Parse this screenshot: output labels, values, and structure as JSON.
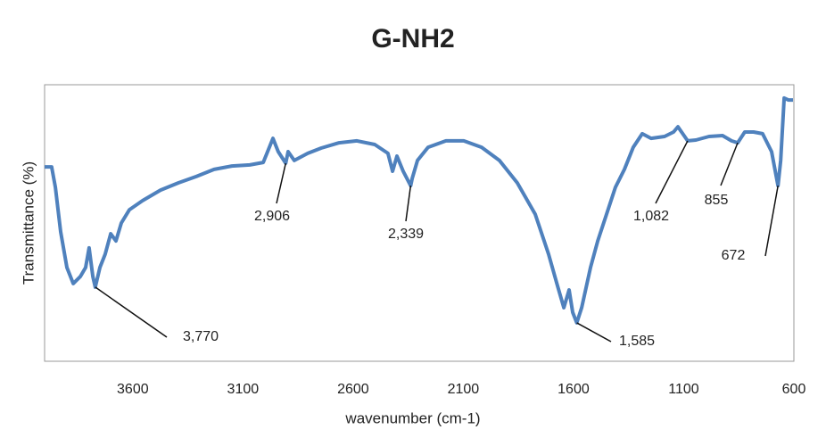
{
  "chart_data": {
    "type": "line",
    "title": "G-NH2",
    "x_label": "wavenumber (cm-1)",
    "y_label": "Transmittance (%)",
    "x": [
      4000,
      3968,
      3951,
      3927,
      3899,
      3870,
      3838,
      3814,
      3798,
      3781,
      3770,
      3749,
      3725,
      3700,
      3676,
      3652,
      3615,
      3555,
      3474,
      3393,
      3312,
      3231,
      3150,
      3069,
      3008,
      2988,
      2964,
      2940,
      2906,
      2895,
      2867,
      2806,
      2745,
      2664,
      2583,
      2502,
      2442,
      2421,
      2401,
      2373,
      2339,
      2332,
      2308,
      2260,
      2179,
      2098,
      2017,
      1936,
      1855,
      1774,
      1713,
      1673,
      1644,
      1620,
      1604,
      1585,
      1563,
      1523,
      1490,
      1450,
      1410,
      1369,
      1329,
      1288,
      1248,
      1187,
      1146,
      1126,
      1082,
      1045,
      985,
      924,
      883,
      855,
      823,
      783,
      742,
      701,
      672,
      660,
      644,
      625,
      604
    ],
    "values": [
      70.3,
      70.3,
      62.9,
      46.8,
      33.9,
      28.1,
      30.6,
      33.9,
      41.0,
      30.6,
      26.8,
      33.9,
      38.7,
      46.1,
      43.5,
      50.0,
      54.8,
      58.1,
      61.9,
      64.5,
      66.8,
      69.4,
      70.6,
      71.0,
      71.9,
      75.8,
      80.6,
      75.8,
      71.6,
      75.8,
      72.6,
      75.2,
      77.1,
      79.0,
      79.7,
      78.4,
      75.2,
      68.7,
      74.2,
      68.7,
      63.5,
      66.1,
      72.6,
      77.4,
      79.7,
      79.7,
      77.4,
      72.6,
      64.5,
      53.2,
      38.7,
      27.4,
      19.4,
      25.8,
      17.7,
      13.9,
      19.4,
      33.9,
      43.5,
      53.2,
      62.9,
      69.4,
      77.4,
      82.3,
      80.6,
      81.3,
      82.9,
      84.8,
      79.7,
      80.0,
      81.3,
      81.6,
      79.7,
      79.0,
      82.9,
      82.9,
      82.3,
      75.8,
      63.5,
      72.6,
      95.2,
      94.5,
      94.5
    ],
    "color": "#4f81bd",
    "xlim": [
      4000,
      600
    ],
    "xticks": [
      3600,
      3100,
      2600,
      2100,
      1600,
      1100,
      600
    ],
    "ylim": [
      0,
      100
    ],
    "grid": false,
    "annotations": [
      {
        "text": "3,770",
        "x": 3770
      },
      {
        "text": "2,906",
        "x": 2906
      },
      {
        "text": "2,339",
        "x": 2339
      },
      {
        "text": "1,585",
        "x": 1585
      },
      {
        "text": "1,082",
        "x": 1082
      },
      {
        "text": "855",
        "x": 855
      },
      {
        "text": "672",
        "x": 672
      }
    ]
  }
}
